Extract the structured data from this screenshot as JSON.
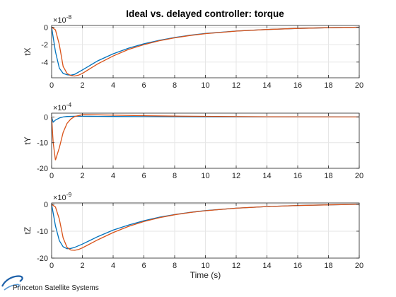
{
  "window": {
    "title": "Ideal vs. delayed controller: torque"
  },
  "logo": {
    "text": "Princeton Satellite Systems"
  },
  "colors": {
    "ideal": "#0072BD",
    "delayed": "#D95319",
    "grid": "#e6e6e6",
    "axis": "#262626"
  },
  "chart_data": [
    {
      "type": "line",
      "title": "Ideal vs. delayed controller: torque",
      "ylabel": "tX",
      "xlabel": "",
      "xlim": [
        0,
        20
      ],
      "ylim": [
        -5.8,
        0.2
      ],
      "exponent_label": "×10",
      "exponent": "-8",
      "xticks": [
        "0",
        "2",
        "4",
        "6",
        "8",
        "10",
        "12",
        "14",
        "16",
        "18",
        "20"
      ],
      "yticks": [
        {
          "v": 0,
          "t": "0"
        },
        {
          "v": -2,
          "t": "-2"
        },
        {
          "v": -4,
          "t": "-4"
        }
      ],
      "grid": true,
      "series": [
        {
          "color": "#0072BD",
          "x": [
            0,
            0.25,
            0.5,
            0.75,
            1,
            1.25,
            1.5,
            2,
            3,
            4,
            5,
            6,
            7,
            8,
            9,
            10,
            12,
            14,
            16,
            18,
            20
          ],
          "y": [
            0,
            -2.8,
            -4.7,
            -5.3,
            -5.45,
            -5.5,
            -5.4,
            -4.9,
            -3.85,
            -3.05,
            -2.4,
            -1.9,
            -1.5,
            -1.18,
            -0.92,
            -0.72,
            -0.44,
            -0.26,
            -0.14,
            -0.06,
            0
          ]
        },
        {
          "color": "#D95319",
          "x": [
            0,
            0.25,
            0.5,
            0.75,
            1,
            1.25,
            1.5,
            1.75,
            2,
            3,
            4,
            5,
            6,
            7,
            8,
            9,
            10,
            12,
            14,
            16,
            18,
            20
          ],
          "y": [
            0,
            -0.3,
            -2.0,
            -4.5,
            -5.3,
            -5.55,
            -5.6,
            -5.5,
            -5.3,
            -4.2,
            -3.3,
            -2.55,
            -2.0,
            -1.55,
            -1.22,
            -0.95,
            -0.74,
            -0.45,
            -0.26,
            -0.14,
            -0.06,
            0
          ]
        }
      ]
    },
    {
      "type": "line",
      "title": "",
      "ylabel": "tY",
      "xlabel": "",
      "xlim": [
        0,
        20
      ],
      "ylim": [
        -20,
        1.5
      ],
      "exponent_label": "×10",
      "exponent": "-4",
      "xticks": [
        "0",
        "2",
        "4",
        "6",
        "8",
        "10",
        "12",
        "14",
        "16",
        "18",
        "20"
      ],
      "yticks": [
        {
          "v": 0,
          "t": "0"
        },
        {
          "v": -10,
          "t": "-10"
        },
        {
          "v": -20,
          "t": "-20"
        }
      ],
      "grid": true,
      "series": [
        {
          "color": "#0072BD",
          "x": [
            0,
            0.1,
            0.25,
            0.5,
            0.75,
            1,
            1.5,
            2,
            3,
            4,
            6,
            8,
            10,
            14,
            20
          ],
          "y": [
            0,
            -2,
            -1.2,
            -0.4,
            0,
            0.2,
            0.3,
            0.3,
            0.25,
            0.2,
            0.15,
            0.1,
            0.08,
            0.03,
            0
          ]
        },
        {
          "color": "#D95319",
          "x": [
            0,
            0.1,
            0.25,
            0.5,
            0.75,
            1,
            1.25,
            1.5,
            2,
            3,
            4,
            6,
            8,
            10,
            14,
            20
          ],
          "y": [
            0,
            -10,
            -16.8,
            -12,
            -6,
            -2.5,
            -0.8,
            0.2,
            0.9,
            0.85,
            0.7,
            0.5,
            0.35,
            0.25,
            0.1,
            0
          ]
        }
      ]
    },
    {
      "type": "line",
      "title": "",
      "ylabel": "tZ",
      "xlabel": "Time (s)",
      "xlim": [
        0,
        20
      ],
      "ylim": [
        -20,
        0.5
      ],
      "exponent_label": "×10",
      "exponent": "-9",
      "xticks": [
        "0",
        "2",
        "4",
        "6",
        "8",
        "10",
        "12",
        "14",
        "16",
        "18",
        "20"
      ],
      "yticks": [
        {
          "v": 0,
          "t": "0"
        },
        {
          "v": -10,
          "t": "-10"
        },
        {
          "v": -20,
          "t": "-20"
        }
      ],
      "grid": true,
      "series": [
        {
          "color": "#0072BD",
          "x": [
            0,
            0.25,
            0.5,
            0.75,
            1,
            1.25,
            1.5,
            2,
            3,
            4,
            5,
            6,
            7,
            8,
            9,
            10,
            12,
            14,
            16,
            18,
            20
          ],
          "y": [
            0,
            -8,
            -13.5,
            -15.8,
            -16.5,
            -16.4,
            -16,
            -14.8,
            -12,
            -9.6,
            -7.7,
            -6.1,
            -4.8,
            -3.8,
            -3.0,
            -2.35,
            -1.45,
            -0.85,
            -0.45,
            -0.2,
            0
          ]
        },
        {
          "color": "#D95319",
          "x": [
            0,
            0.25,
            0.5,
            0.75,
            1,
            1.25,
            1.5,
            1.75,
            2,
            3,
            4,
            5,
            6,
            7,
            8,
            9,
            10,
            12,
            14,
            16,
            18,
            20
          ],
          "y": [
            0,
            -1.0,
            -5.5,
            -12.5,
            -16,
            -17,
            -17.1,
            -16.8,
            -16.2,
            -13.2,
            -10.5,
            -8.2,
            -6.4,
            -5.0,
            -3.9,
            -3.05,
            -2.4,
            -1.45,
            -0.85,
            -0.45,
            -0.2,
            0
          ]
        }
      ]
    }
  ]
}
